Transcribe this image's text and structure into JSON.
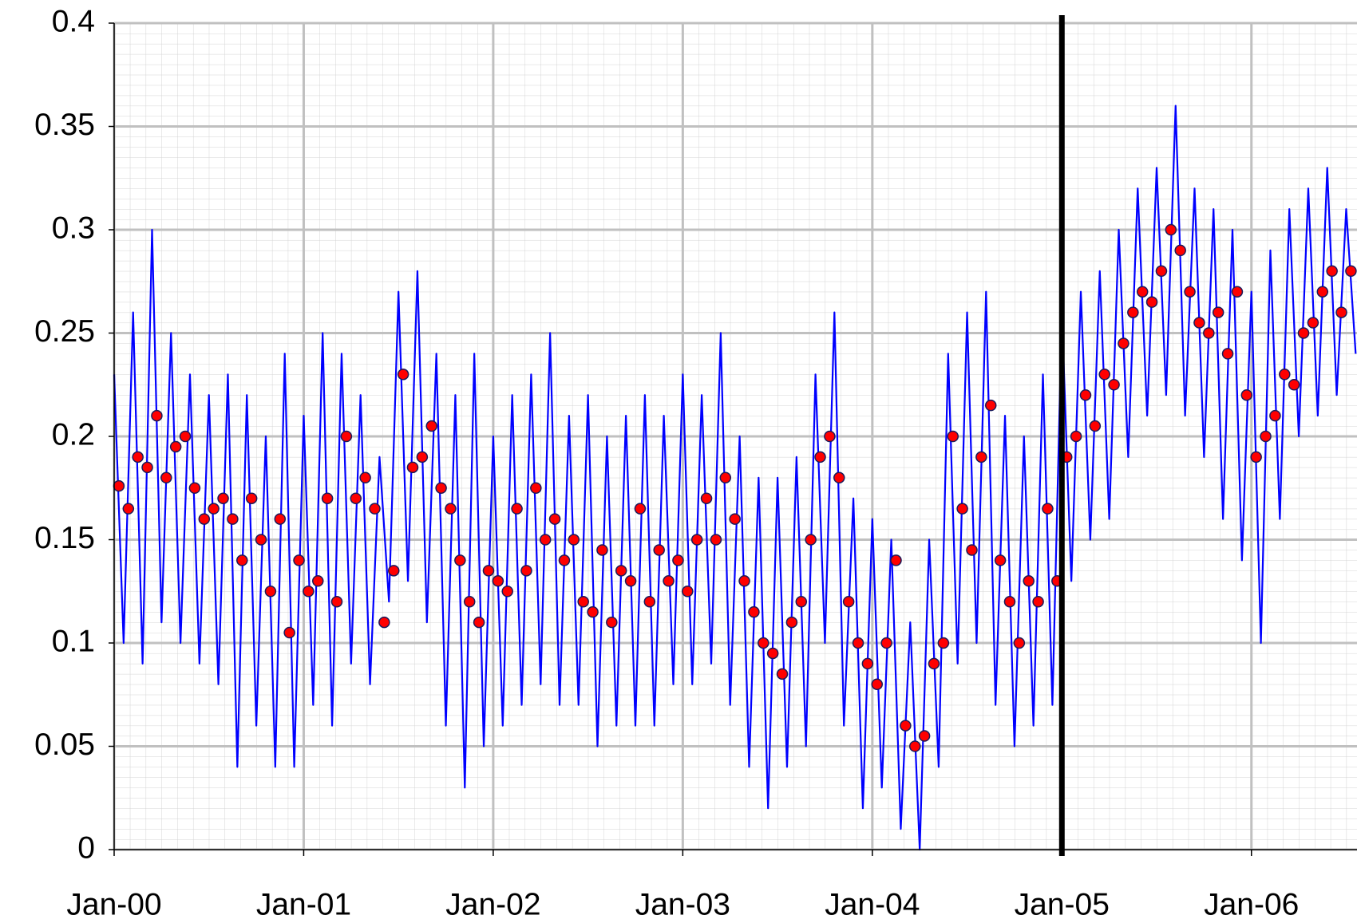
{
  "chart_data": {
    "type": "line-scatter",
    "xlim": [
      2000,
      2006.557
    ],
    "xticks": [
      {
        "value": 2000,
        "label": "Jan-00"
      },
      {
        "value": 2001,
        "label": "Jan-01"
      },
      {
        "value": 2002,
        "label": "Jan-02"
      },
      {
        "value": 2003,
        "label": "Jan-03"
      },
      {
        "value": 2004,
        "label": "Jan-04"
      },
      {
        "value": 2005,
        "label": "Jan-05"
      },
      {
        "value": 2006,
        "label": "Jan-06"
      }
    ],
    "ylim": [
      0,
      0.4
    ],
    "yticks": [
      0,
      0.05,
      0.1,
      0.15,
      0.2,
      0.25,
      0.3,
      0.35,
      0.4
    ],
    "grid": true,
    "vlines": [
      2005
    ],
    "series": [
      {
        "kind": "line",
        "color": "#0000ff",
        "x": [
          2000.0,
          2000.05,
          2000.1,
          2000.15,
          2000.2,
          2000.25,
          2000.3,
          2000.35,
          2000.4,
          2000.45,
          2000.5,
          2000.55,
          2000.6,
          2000.65,
          2000.7,
          2000.75,
          2000.8,
          2000.85,
          2000.9,
          2000.95,
          2001.0,
          2001.05,
          2001.1,
          2001.15,
          2001.2,
          2001.25,
          2001.3,
          2001.35,
          2001.4,
          2001.45,
          2001.5,
          2001.55,
          2001.6,
          2001.65,
          2001.7,
          2001.75,
          2001.8,
          2001.85,
          2001.9,
          2001.95,
          2002.0,
          2002.05,
          2002.1,
          2002.15,
          2002.2,
          2002.25,
          2002.3,
          2002.35,
          2002.4,
          2002.45,
          2002.5,
          2002.55,
          2002.6,
          2002.65,
          2002.7,
          2002.75,
          2002.8,
          2002.85,
          2002.9,
          2002.95,
          2003.0,
          2003.05,
          2003.1,
          2003.15,
          2003.2,
          2003.25,
          2003.3,
          2003.35,
          2003.4,
          2003.45,
          2003.5,
          2003.55,
          2003.6,
          2003.65,
          2003.7,
          2003.75,
          2003.8,
          2003.85,
          2003.9,
          2003.95,
          2004.0,
          2004.05,
          2004.1,
          2004.15,
          2004.2,
          2004.25,
          2004.3,
          2004.35,
          2004.4,
          2004.45,
          2004.5,
          2004.55,
          2004.6,
          2004.65,
          2004.7,
          2004.75,
          2004.8,
          2004.85,
          2004.9,
          2004.95,
          2005.0,
          2005.05,
          2005.1,
          2005.15,
          2005.2,
          2005.25,
          2005.3,
          2005.35,
          2005.4,
          2005.45,
          2005.5,
          2005.55,
          2005.6,
          2005.65,
          2005.7,
          2005.75,
          2005.8,
          2005.85,
          2005.9,
          2005.95,
          2006.0,
          2006.05,
          2006.1,
          2006.15,
          2006.2,
          2006.25,
          2006.3,
          2006.35,
          2006.4,
          2006.45,
          2006.5,
          2006.55
        ],
        "values": [
          0.23,
          0.1,
          0.26,
          0.09,
          0.3,
          0.11,
          0.25,
          0.1,
          0.23,
          0.09,
          0.22,
          0.08,
          0.23,
          0.04,
          0.22,
          0.06,
          0.2,
          0.04,
          0.24,
          0.04,
          0.21,
          0.07,
          0.25,
          0.06,
          0.24,
          0.09,
          0.22,
          0.08,
          0.19,
          0.12,
          0.27,
          0.13,
          0.28,
          0.11,
          0.24,
          0.06,
          0.22,
          0.03,
          0.24,
          0.05,
          0.2,
          0.06,
          0.22,
          0.07,
          0.23,
          0.08,
          0.25,
          0.07,
          0.21,
          0.07,
          0.22,
          0.05,
          0.2,
          0.06,
          0.21,
          0.06,
          0.22,
          0.06,
          0.21,
          0.08,
          0.23,
          0.08,
          0.22,
          0.09,
          0.25,
          0.07,
          0.2,
          0.04,
          0.18,
          0.02,
          0.18,
          0.04,
          0.19,
          0.05,
          0.23,
          0.1,
          0.26,
          0.06,
          0.17,
          0.02,
          0.16,
          0.03,
          0.15,
          0.01,
          0.11,
          0.0,
          0.15,
          0.04,
          0.24,
          0.09,
          0.26,
          0.1,
          0.27,
          0.07,
          0.21,
          0.05,
          0.2,
          0.06,
          0.23,
          0.07,
          0.26,
          0.13,
          0.27,
          0.15,
          0.28,
          0.16,
          0.3,
          0.19,
          0.32,
          0.21,
          0.33,
          0.22,
          0.36,
          0.21,
          0.32,
          0.19,
          0.31,
          0.16,
          0.3,
          0.14,
          0.27,
          0.1,
          0.29,
          0.16,
          0.31,
          0.2,
          0.32,
          0.21,
          0.33,
          0.22,
          0.31,
          0.24
        ]
      },
      {
        "kind": "scatter",
        "color": "#ff0000",
        "x": [
          2000.025,
          2000.075,
          2000.125,
          2000.175,
          2000.225,
          2000.275,
          2000.325,
          2000.375,
          2000.425,
          2000.475,
          2000.525,
          2000.575,
          2000.625,
          2000.675,
          2000.725,
          2000.775,
          2000.825,
          2000.875,
          2000.925,
          2000.975,
          2001.025,
          2001.075,
          2001.125,
          2001.175,
          2001.225,
          2001.275,
          2001.325,
          2001.375,
          2001.425,
          2001.475,
          2001.525,
          2001.575,
          2001.625,
          2001.675,
          2001.725,
          2001.775,
          2001.825,
          2001.875,
          2001.925,
          2001.975,
          2002.025,
          2002.075,
          2002.125,
          2002.175,
          2002.225,
          2002.275,
          2002.325,
          2002.375,
          2002.425,
          2002.475,
          2002.525,
          2002.575,
          2002.625,
          2002.675,
          2002.725,
          2002.775,
          2002.825,
          2002.875,
          2002.925,
          2002.975,
          2003.025,
          2003.075,
          2003.125,
          2003.175,
          2003.225,
          2003.275,
          2003.325,
          2003.375,
          2003.425,
          2003.475,
          2003.525,
          2003.575,
          2003.625,
          2003.675,
          2003.725,
          2003.775,
          2003.825,
          2003.875,
          2003.925,
          2003.975,
          2004.025,
          2004.075,
          2004.125,
          2004.175,
          2004.225,
          2004.275,
          2004.325,
          2004.375,
          2004.425,
          2004.475,
          2004.525,
          2004.575,
          2004.625,
          2004.675,
          2004.725,
          2004.775,
          2004.825,
          2004.875,
          2004.925,
          2004.975,
          2005.025,
          2005.075,
          2005.125,
          2005.175,
          2005.225,
          2005.275,
          2005.325,
          2005.375,
          2005.425,
          2005.475,
          2005.525,
          2005.575,
          2005.625,
          2005.675,
          2005.725,
          2005.775,
          2005.825,
          2005.875,
          2005.925,
          2005.975,
          2006.025,
          2006.075,
          2006.125,
          2006.175,
          2006.225,
          2006.275,
          2006.325,
          2006.375,
          2006.425,
          2006.475,
          2006.525
        ],
        "values": [
          0.176,
          0.165,
          0.19,
          0.185,
          0.21,
          0.18,
          0.195,
          0.2,
          0.175,
          0.16,
          0.165,
          0.17,
          0.16,
          0.14,
          0.17,
          0.15,
          0.125,
          0.16,
          0.105,
          0.14,
          0.125,
          0.13,
          0.17,
          0.12,
          0.2,
          0.17,
          0.18,
          0.165,
          0.11,
          0.135,
          0.23,
          0.185,
          0.19,
          0.205,
          0.175,
          0.165,
          0.14,
          0.12,
          0.11,
          0.135,
          0.13,
          0.125,
          0.165,
          0.135,
          0.175,
          0.15,
          0.16,
          0.14,
          0.15,
          0.12,
          0.115,
          0.145,
          0.11,
          0.135,
          0.13,
          0.165,
          0.12,
          0.145,
          0.13,
          0.14,
          0.125,
          0.15,
          0.17,
          0.15,
          0.18,
          0.16,
          0.13,
          0.115,
          0.1,
          0.095,
          0.085,
          0.11,
          0.12,
          0.15,
          0.19,
          0.2,
          0.18,
          0.12,
          0.1,
          0.09,
          0.08,
          0.1,
          0.14,
          0.06,
          0.05,
          0.055,
          0.09,
          0.1,
          0.2,
          0.165,
          0.145,
          0.19,
          0.215,
          0.14,
          0.12,
          0.1,
          0.13,
          0.12,
          0.165,
          0.13,
          0.19,
          0.2,
          0.22,
          0.205,
          0.23,
          0.225,
          0.245,
          0.26,
          0.27,
          0.265,
          0.28,
          0.3,
          0.29,
          0.27,
          0.255,
          0.25,
          0.26,
          0.24,
          0.27,
          0.22,
          0.19,
          0.2,
          0.21,
          0.23,
          0.225,
          0.25,
          0.255,
          0.27,
          0.28,
          0.26,
          0.28
        ]
      }
    ]
  }
}
